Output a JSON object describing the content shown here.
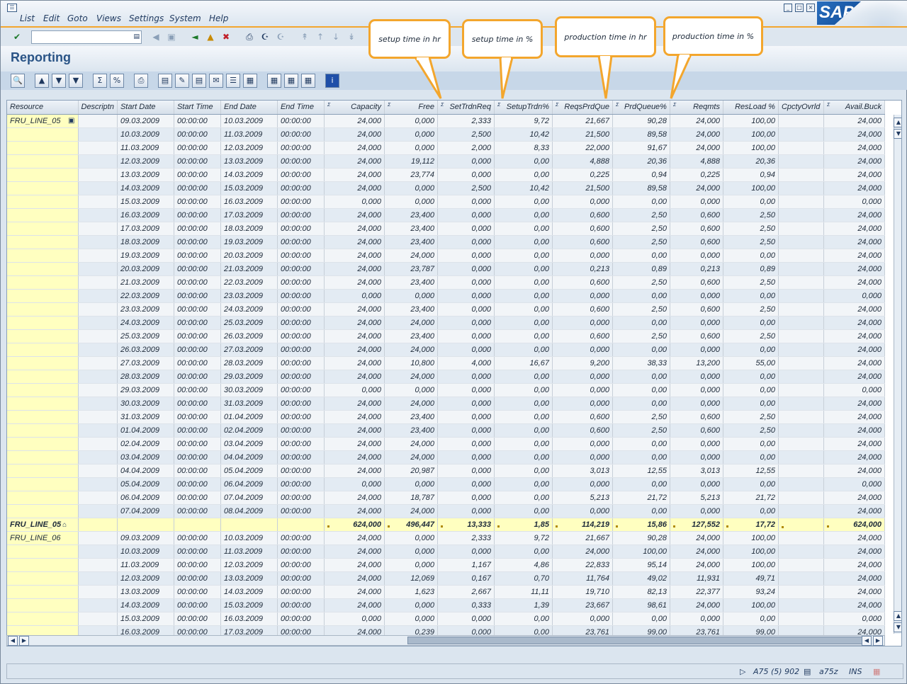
{
  "menu": {
    "items": [
      "List",
      "Edit",
      "Goto",
      "Views",
      "Settings",
      "System",
      "Help"
    ]
  },
  "brand": {
    "logo_text": "SAP"
  },
  "page": {
    "title": "Reporting"
  },
  "callouts": [
    "setup time in hr",
    "setup time in %",
    "production time in hr",
    "production time in %"
  ],
  "columns": [
    "Resource",
    "Descriptn",
    "Start Date",
    "Start Time",
    "End Date",
    "End Time",
    "Capacity",
    "Free",
    "SetTrdnReq",
    "SetupTrdn%",
    "ReqsPrdQue",
    "PrdQueue%",
    "Reqmts",
    "ResLoad %",
    "CpctyOvrld",
    "Avail.Buck"
  ],
  "groups": [
    {
      "resource": "FRU_LINE_05",
      "rows": [
        [
          "09.03.2009",
          "00:00:00",
          "10.03.2009",
          "00:00:00",
          "24,000",
          "0,000",
          "2,333",
          "9,72",
          "21,667",
          "90,28",
          "24,000",
          "100,00",
          "",
          "24,000"
        ],
        [
          "10.03.2009",
          "00:00:00",
          "11.03.2009",
          "00:00:00",
          "24,000",
          "0,000",
          "2,500",
          "10,42",
          "21,500",
          "89,58",
          "24,000",
          "100,00",
          "",
          "24,000"
        ],
        [
          "11.03.2009",
          "00:00:00",
          "12.03.2009",
          "00:00:00",
          "24,000",
          "0,000",
          "2,000",
          "8,33",
          "22,000",
          "91,67",
          "24,000",
          "100,00",
          "",
          "24,000"
        ],
        [
          "12.03.2009",
          "00:00:00",
          "13.03.2009",
          "00:00:00",
          "24,000",
          "19,112",
          "0,000",
          "0,00",
          "4,888",
          "20,36",
          "4,888",
          "20,36",
          "",
          "24,000"
        ],
        [
          "13.03.2009",
          "00:00:00",
          "14.03.2009",
          "00:00:00",
          "24,000",
          "23,774",
          "0,000",
          "0,00",
          "0,225",
          "0,94",
          "0,225",
          "0,94",
          "",
          "24,000"
        ],
        [
          "14.03.2009",
          "00:00:00",
          "15.03.2009",
          "00:00:00",
          "24,000",
          "0,000",
          "2,500",
          "10,42",
          "21,500",
          "89,58",
          "24,000",
          "100,00",
          "",
          "24,000"
        ],
        [
          "15.03.2009",
          "00:00:00",
          "16.03.2009",
          "00:00:00",
          "0,000",
          "0,000",
          "0,000",
          "0,00",
          "0,000",
          "0,00",
          "0,000",
          "0,00",
          "",
          "0,000"
        ],
        [
          "16.03.2009",
          "00:00:00",
          "17.03.2009",
          "00:00:00",
          "24,000",
          "23,400",
          "0,000",
          "0,00",
          "0,600",
          "2,50",
          "0,600",
          "2,50",
          "",
          "24,000"
        ],
        [
          "17.03.2009",
          "00:00:00",
          "18.03.2009",
          "00:00:00",
          "24,000",
          "23,400",
          "0,000",
          "0,00",
          "0,600",
          "2,50",
          "0,600",
          "2,50",
          "",
          "24,000"
        ],
        [
          "18.03.2009",
          "00:00:00",
          "19.03.2009",
          "00:00:00",
          "24,000",
          "23,400",
          "0,000",
          "0,00",
          "0,600",
          "2,50",
          "0,600",
          "2,50",
          "",
          "24,000"
        ],
        [
          "19.03.2009",
          "00:00:00",
          "20.03.2009",
          "00:00:00",
          "24,000",
          "24,000",
          "0,000",
          "0,00",
          "0,000",
          "0,00",
          "0,000",
          "0,00",
          "",
          "24,000"
        ],
        [
          "20.03.2009",
          "00:00:00",
          "21.03.2009",
          "00:00:00",
          "24,000",
          "23,787",
          "0,000",
          "0,00",
          "0,213",
          "0,89",
          "0,213",
          "0,89",
          "",
          "24,000"
        ],
        [
          "21.03.2009",
          "00:00:00",
          "22.03.2009",
          "00:00:00",
          "24,000",
          "23,400",
          "0,000",
          "0,00",
          "0,600",
          "2,50",
          "0,600",
          "2,50",
          "",
          "24,000"
        ],
        [
          "22.03.2009",
          "00:00:00",
          "23.03.2009",
          "00:00:00",
          "0,000",
          "0,000",
          "0,000",
          "0,00",
          "0,000",
          "0,00",
          "0,000",
          "0,00",
          "",
          "0,000"
        ],
        [
          "23.03.2009",
          "00:00:00",
          "24.03.2009",
          "00:00:00",
          "24,000",
          "23,400",
          "0,000",
          "0,00",
          "0,600",
          "2,50",
          "0,600",
          "2,50",
          "",
          "24,000"
        ],
        [
          "24.03.2009",
          "00:00:00",
          "25.03.2009",
          "00:00:00",
          "24,000",
          "24,000",
          "0,000",
          "0,00",
          "0,000",
          "0,00",
          "0,000",
          "0,00",
          "",
          "24,000"
        ],
        [
          "25.03.2009",
          "00:00:00",
          "26.03.2009",
          "00:00:00",
          "24,000",
          "23,400",
          "0,000",
          "0,00",
          "0,600",
          "2,50",
          "0,600",
          "2,50",
          "",
          "24,000"
        ],
        [
          "26.03.2009",
          "00:00:00",
          "27.03.2009",
          "00:00:00",
          "24,000",
          "24,000",
          "0,000",
          "0,00",
          "0,000",
          "0,00",
          "0,000",
          "0,00",
          "",
          "24,000"
        ],
        [
          "27.03.2009",
          "00:00:00",
          "28.03.2009",
          "00:00:00",
          "24,000",
          "10,800",
          "4,000",
          "16,67",
          "9,200",
          "38,33",
          "13,200",
          "55,00",
          "",
          "24,000"
        ],
        [
          "28.03.2009",
          "00:00:00",
          "29.03.2009",
          "00:00:00",
          "24,000",
          "24,000",
          "0,000",
          "0,00",
          "0,000",
          "0,00",
          "0,000",
          "0,00",
          "",
          "24,000"
        ],
        [
          "29.03.2009",
          "00:00:00",
          "30.03.2009",
          "00:00:00",
          "0,000",
          "0,000",
          "0,000",
          "0,00",
          "0,000",
          "0,00",
          "0,000",
          "0,00",
          "",
          "0,000"
        ],
        [
          "30.03.2009",
          "00:00:00",
          "31.03.2009",
          "00:00:00",
          "24,000",
          "24,000",
          "0,000",
          "0,00",
          "0,000",
          "0,00",
          "0,000",
          "0,00",
          "",
          "24,000"
        ],
        [
          "31.03.2009",
          "00:00:00",
          "01.04.2009",
          "00:00:00",
          "24,000",
          "23,400",
          "0,000",
          "0,00",
          "0,600",
          "2,50",
          "0,600",
          "2,50",
          "",
          "24,000"
        ],
        [
          "01.04.2009",
          "00:00:00",
          "02.04.2009",
          "00:00:00",
          "24,000",
          "23,400",
          "0,000",
          "0,00",
          "0,600",
          "2,50",
          "0,600",
          "2,50",
          "",
          "24,000"
        ],
        [
          "02.04.2009",
          "00:00:00",
          "03.04.2009",
          "00:00:00",
          "24,000",
          "24,000",
          "0,000",
          "0,00",
          "0,000",
          "0,00",
          "0,000",
          "0,00",
          "",
          "24,000"
        ],
        [
          "03.04.2009",
          "00:00:00",
          "04.04.2009",
          "00:00:00",
          "24,000",
          "24,000",
          "0,000",
          "0,00",
          "0,000",
          "0,00",
          "0,000",
          "0,00",
          "",
          "24,000"
        ],
        [
          "04.04.2009",
          "00:00:00",
          "05.04.2009",
          "00:00:00",
          "24,000",
          "20,987",
          "0,000",
          "0,00",
          "3,013",
          "12,55",
          "3,013",
          "12,55",
          "",
          "24,000"
        ],
        [
          "05.04.2009",
          "00:00:00",
          "06.04.2009",
          "00:00:00",
          "0,000",
          "0,000",
          "0,000",
          "0,00",
          "0,000",
          "0,00",
          "0,000",
          "0,00",
          "",
          "0,000"
        ],
        [
          "06.04.2009",
          "00:00:00",
          "07.04.2009",
          "00:00:00",
          "24,000",
          "18,787",
          "0,000",
          "0,00",
          "5,213",
          "21,72",
          "5,213",
          "21,72",
          "",
          "24,000"
        ],
        [
          "07.04.2009",
          "00:00:00",
          "08.04.2009",
          "00:00:00",
          "24,000",
          "24,000",
          "0,000",
          "0,00",
          "0,000",
          "0,00",
          "0,000",
          "0,00",
          "",
          "24,000"
        ]
      ],
      "subtotal": [
        "624,000",
        "496,447",
        "13,333",
        "1,85",
        "114,219",
        "15,86",
        "127,552",
        "17,72",
        "",
        "624,000"
      ]
    },
    {
      "resource": "FRU_LINE_06",
      "rows": [
        [
          "09.03.2009",
          "00:00:00",
          "10.03.2009",
          "00:00:00",
          "24,000",
          "0,000",
          "2,333",
          "9,72",
          "21,667",
          "90,28",
          "24,000",
          "100,00",
          "",
          "24,000"
        ],
        [
          "10.03.2009",
          "00:00:00",
          "11.03.2009",
          "00:00:00",
          "24,000",
          "0,000",
          "0,000",
          "0,00",
          "24,000",
          "100,00",
          "24,000",
          "100,00",
          "",
          "24,000"
        ],
        [
          "11.03.2009",
          "00:00:00",
          "12.03.2009",
          "00:00:00",
          "24,000",
          "0,000",
          "1,167",
          "4,86",
          "22,833",
          "95,14",
          "24,000",
          "100,00",
          "",
          "24,000"
        ],
        [
          "12.03.2009",
          "00:00:00",
          "13.03.2009",
          "00:00:00",
          "24,000",
          "12,069",
          "0,167",
          "0,70",
          "11,764",
          "49,02",
          "11,931",
          "49,71",
          "",
          "24,000"
        ],
        [
          "13.03.2009",
          "00:00:00",
          "14.03.2009",
          "00:00:00",
          "24,000",
          "1,623",
          "2,667",
          "11,11",
          "19,710",
          "82,13",
          "22,377",
          "93,24",
          "",
          "24,000"
        ],
        [
          "14.03.2009",
          "00:00:00",
          "15.03.2009",
          "00:00:00",
          "24,000",
          "0,000",
          "0,333",
          "1,39",
          "23,667",
          "98,61",
          "24,000",
          "100,00",
          "",
          "24,000"
        ],
        [
          "15.03.2009",
          "00:00:00",
          "16.03.2009",
          "00:00:00",
          "0,000",
          "0,000",
          "0,000",
          "0,00",
          "0,000",
          "0,00",
          "0,000",
          "0,00",
          "",
          "0,000"
        ],
        [
          "16.03.2009",
          "00:00:00",
          "17.03.2009",
          "00:00:00",
          "24,000",
          "0,239",
          "0,000",
          "0,00",
          "23,761",
          "99,00",
          "23,761",
          "99,00",
          "",
          "24,000"
        ]
      ]
    }
  ],
  "status": {
    "system": "A75 (5) 902",
    "server": "a75z",
    "mode": "INS"
  }
}
